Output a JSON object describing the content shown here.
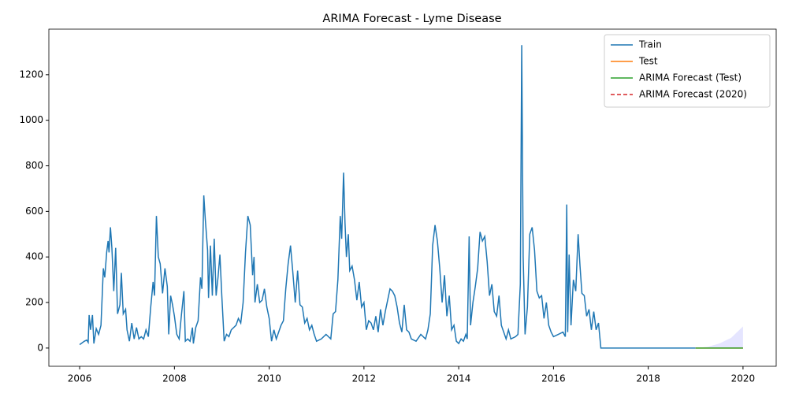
{
  "chart_data": {
    "type": "line",
    "title": "ARIMA Forecast - Lyme Disease",
    "xlim": [
      2005.35,
      2020.7
    ],
    "ylim": [
      -80,
      1400
    ],
    "xticks": [
      2006,
      2008,
      2010,
      2012,
      2014,
      2016,
      2018,
      2020
    ],
    "yticks": [
      0,
      200,
      400,
      600,
      800,
      1000,
      1200
    ],
    "legend": "upper right",
    "series": [
      {
        "name": "Train",
        "color": "#1f77b4",
        "style": "solid",
        "x": [
          2006.0,
          2006.1,
          2006.15,
          2006.18,
          2006.2,
          2006.23,
          2006.27,
          2006.3,
          2006.35,
          2006.4,
          2006.45,
          2006.5,
          2006.53,
          2006.57,
          2006.6,
          2006.62,
          2006.65,
          2006.68,
          2006.72,
          2006.76,
          2006.8,
          2006.85,
          2006.88,
          2006.92,
          2006.97,
          2007.0,
          2007.05,
          2007.1,
          2007.15,
          2007.2,
          2007.25,
          2007.3,
          2007.35,
          2007.4,
          2007.45,
          2007.5,
          2007.55,
          2007.58,
          2007.62,
          2007.66,
          2007.7,
          2007.75,
          2007.8,
          2007.85,
          2007.88,
          2007.92,
          2007.96,
          2008.0,
          2008.05,
          2008.1,
          2008.15,
          2008.2,
          2008.23,
          2008.28,
          2008.33,
          2008.38,
          2008.4,
          2008.45,
          2008.5,
          2008.55,
          2008.58,
          2008.62,
          2008.65,
          2008.7,
          2008.72,
          2008.76,
          2008.8,
          2008.84,
          2008.88,
          2008.92,
          2008.96,
          2009.0,
          2009.05,
          2009.1,
          2009.15,
          2009.2,
          2009.3,
          2009.35,
          2009.4,
          2009.45,
          2009.5,
          2009.55,
          2009.6,
          2009.65,
          2009.68,
          2009.7,
          2009.75,
          2009.8,
          2009.85,
          2009.9,
          2009.95,
          2010.0,
          2010.05,
          2010.1,
          2010.15,
          2010.2,
          2010.25,
          2010.3,
          2010.35,
          2010.4,
          2010.45,
          2010.5,
          2010.55,
          2010.6,
          2010.65,
          2010.7,
          2010.75,
          2010.8,
          2010.85,
          2010.9,
          2010.95,
          2011.0,
          2011.1,
          2011.2,
          2011.3,
          2011.35,
          2011.4,
          2011.45,
          2011.5,
          2011.53,
          2011.57,
          2011.6,
          2011.63,
          2011.67,
          2011.7,
          2011.75,
          2011.8,
          2011.85,
          2011.9,
          2011.95,
          2012.0,
          2012.05,
          2012.1,
          2012.15,
          2012.2,
          2012.25,
          2012.3,
          2012.35,
          2012.4,
          2012.45,
          2012.55,
          2012.6,
          2012.65,
          2012.7,
          2012.75,
          2012.8,
          2012.85,
          2012.9,
          2012.95,
          2013.0,
          2013.1,
          2013.2,
          2013.3,
          2013.35,
          2013.4,
          2013.45,
          2013.5,
          2013.55,
          2013.6,
          2013.65,
          2013.7,
          2013.75,
          2013.8,
          2013.85,
          2013.9,
          2013.95,
          2014.0,
          2014.05,
          2014.1,
          2014.15,
          2014.18,
          2014.22,
          2014.25,
          2014.3,
          2014.35,
          2014.4,
          2014.45,
          2014.5,
          2014.55,
          2014.6,
          2014.65,
          2014.7,
          2014.75,
          2014.8,
          2014.85,
          2014.9,
          2014.95,
          2015.0,
          2015.05,
          2015.1,
          2015.2,
          2015.25,
          2015.3,
          2015.33,
          2015.36,
          2015.4,
          2015.45,
          2015.5,
          2015.55,
          2015.6,
          2015.65,
          2015.7,
          2015.75,
          2015.8,
          2015.85,
          2015.9,
          2015.95,
          2016.0,
          2016.1,
          2016.2,
          2016.25,
          2016.28,
          2016.3,
          2016.33,
          2016.37,
          2016.42,
          2016.47,
          2016.52,
          2016.56,
          2016.6,
          2016.65,
          2016.7,
          2016.75,
          2016.8,
          2016.85,
          2016.9,
          2016.95,
          2017.0,
          2019.0
        ],
        "values": [
          15,
          30,
          35,
          25,
          145,
          80,
          145,
          20,
          85,
          60,
          100,
          350,
          310,
          420,
          470,
          420,
          530,
          440,
          250,
          440,
          150,
          190,
          330,
          150,
          170,
          80,
          30,
          110,
          40,
          90,
          40,
          50,
          40,
          80,
          50,
          180,
          290,
          230,
          580,
          400,
          370,
          240,
          350,
          270,
          60,
          230,
          190,
          140,
          60,
          40,
          150,
          250,
          30,
          40,
          30,
          90,
          20,
          90,
          120,
          310,
          260,
          670,
          570,
          430,
          220,
          450,
          230,
          480,
          230,
          310,
          410,
          230,
          30,
          60,
          50,
          80,
          100,
          130,
          110,
          200,
          420,
          580,
          540,
          320,
          400,
          200,
          280,
          200,
          210,
          260,
          180,
          130,
          30,
          80,
          40,
          70,
          100,
          120,
          260,
          370,
          450,
          330,
          200,
          340,
          190,
          180,
          110,
          130,
          80,
          100,
          60,
          30,
          40,
          60,
          40,
          150,
          160,
          300,
          580,
          480,
          770,
          550,
          400,
          500,
          340,
          360,
          300,
          210,
          290,
          180,
          200,
          80,
          120,
          110,
          80,
          140,
          70,
          170,
          100,
          160,
          260,
          250,
          230,
          180,
          110,
          70,
          190,
          80,
          70,
          40,
          30,
          60,
          40,
          80,
          150,
          450,
          540,
          470,
          350,
          200,
          320,
          140,
          230,
          80,
          100,
          30,
          20,
          40,
          30,
          60,
          40,
          490,
          100,
          200,
          270,
          350,
          510,
          470,
          490,
          380,
          230,
          280,
          160,
          140,
          230,
          100,
          70,
          40,
          80,
          40,
          50,
          60,
          280,
          1330,
          400,
          60,
          180,
          500,
          530,
          430,
          250,
          220,
          230,
          130,
          200,
          100,
          70,
          50,
          60,
          70,
          50,
          630,
          70,
          410,
          100,
          300,
          250,
          500,
          360,
          240,
          230,
          140,
          170,
          80,
          160,
          80,
          110,
          0,
          0
        ]
      },
      {
        "name": "Test",
        "color": "#ff7f0e",
        "style": "solid",
        "x": [
          2019.0,
          2020.0
        ],
        "values": [
          0,
          0
        ]
      },
      {
        "name": "ARIMA Forecast (Test)",
        "color": "#2ca02c",
        "style": "solid",
        "x": [
          2019.0,
          2020.0
        ],
        "values": [
          0,
          0
        ]
      },
      {
        "name": "ARIMA Forecast (2020)",
        "color": "#d62728",
        "style": "dashed",
        "x": [],
        "values": []
      }
    ],
    "band": {
      "color": "#0000ff",
      "x": [
        2019.0,
        2019.25,
        2019.5,
        2019.75,
        2020.0
      ],
      "lower": [
        0,
        0,
        0,
        0,
        0
      ],
      "upper": [
        0,
        5,
        20,
        45,
        95
      ]
    }
  }
}
